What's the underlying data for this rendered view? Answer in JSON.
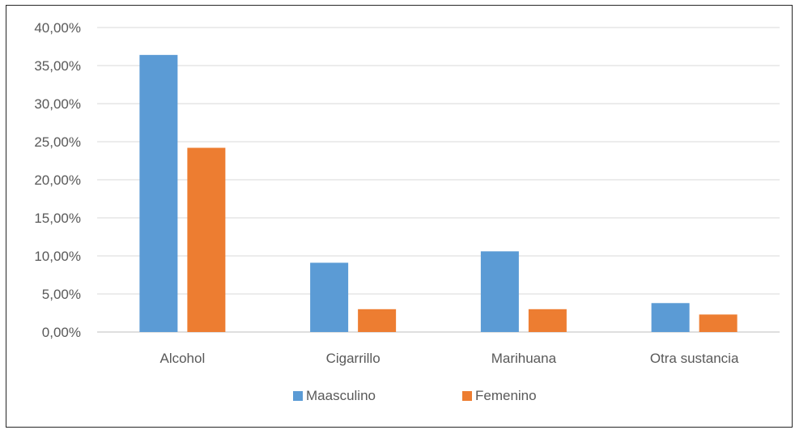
{
  "chart_data": {
    "type": "bar",
    "title": "",
    "xlabel": "",
    "ylabel": "",
    "categories": [
      "Alcohol",
      "Cigarrillo",
      "Marihuana",
      "Otra sustancia"
    ],
    "series": [
      {
        "name": "Maasculino",
        "color": "#5B9BD5",
        "values": [
          36.4,
          9.1,
          10.6,
          3.8
        ]
      },
      {
        "name": "Femenino",
        "color": "#ED7D31",
        "values": [
          24.2,
          3.0,
          3.0,
          2.3
        ]
      }
    ],
    "ylim": [
      0,
      40
    ],
    "yticks": [
      "0,00%",
      "5,00%",
      "10,00%",
      "15,00%",
      "20,00%",
      "25,00%",
      "30,00%",
      "35,00%",
      "40,00%"
    ],
    "grid": true,
    "legend_position": "bottom",
    "colors": {
      "gridline": "#D9D9D9",
      "axis": "#BFBFBF",
      "text": "#595959",
      "frame": "#262626"
    }
  }
}
